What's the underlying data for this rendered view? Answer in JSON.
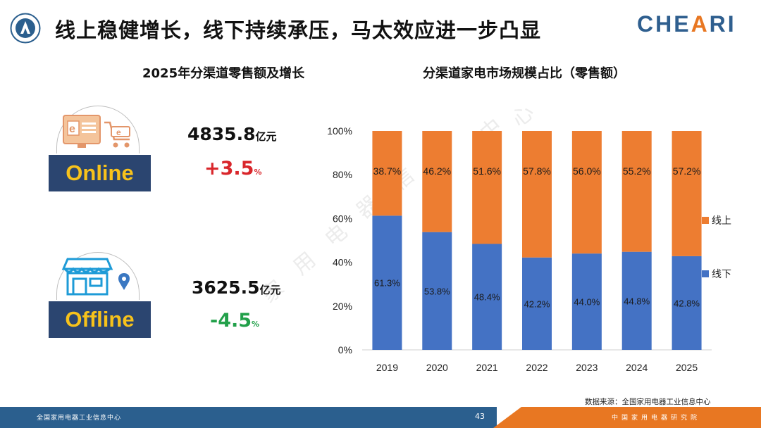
{
  "header": {
    "title": "线上稳健增长，线下持续承压，马太效应进一步凸显",
    "brand_main": "CHE",
    "brand_accent": "A",
    "brand_tail": "RI"
  },
  "left": {
    "title": "2025年分渠道零售额及增长",
    "online": {
      "label": "Online",
      "amount": "4835.8",
      "unit": "亿元",
      "growth": "+3.5",
      "growth_unit": "%"
    },
    "offline": {
      "label": "Offline",
      "amount": "3625.5",
      "unit": "亿元",
      "growth": "-4.5",
      "growth_unit": "%"
    }
  },
  "right": {
    "title": "分渠道家电市场规模占比（零售额）"
  },
  "watermark": [
    "家",
    "用",
    "电",
    "器",
    "信",
    "息",
    "中",
    "心"
  ],
  "colors": {
    "online": "#ed7d31",
    "offline": "#4472c4",
    "navy": "#2b4570",
    "label_yellow": "#f7c21b",
    "up": "#d9262b",
    "down": "#22a04a"
  },
  "chart_data": {
    "type": "bar",
    "stacked": true,
    "categories": [
      "2019",
      "2020",
      "2021",
      "2022",
      "2023",
      "2024",
      "2025"
    ],
    "series": [
      {
        "name": "线下",
        "values": [
          61.3,
          53.8,
          48.4,
          42.2,
          44.0,
          44.8,
          42.8
        ],
        "labels": [
          "61.3%",
          "53.8%",
          "48.4%",
          "42.2%",
          "44.0%",
          "44.8%",
          "42.8%"
        ]
      },
      {
        "name": "线上",
        "values": [
          38.7,
          46.2,
          51.6,
          57.8,
          56.0,
          55.2,
          57.2
        ],
        "labels": [
          "38.7%",
          "46.2%",
          "51.6%",
          "57.8%",
          "56.0%",
          "55.2%",
          "57.2%"
        ]
      }
    ],
    "yticks": [
      "0%",
      "20%",
      "40%",
      "60%",
      "80%",
      "100%"
    ],
    "ylim": [
      0,
      100
    ],
    "grid": false,
    "legend": "right"
  },
  "footer": {
    "left": "全国家用电器工业信息中心",
    "page": "43",
    "right": "中国家用电器研究院",
    "source": "数据来源：全国家用电器工业信息中心"
  }
}
